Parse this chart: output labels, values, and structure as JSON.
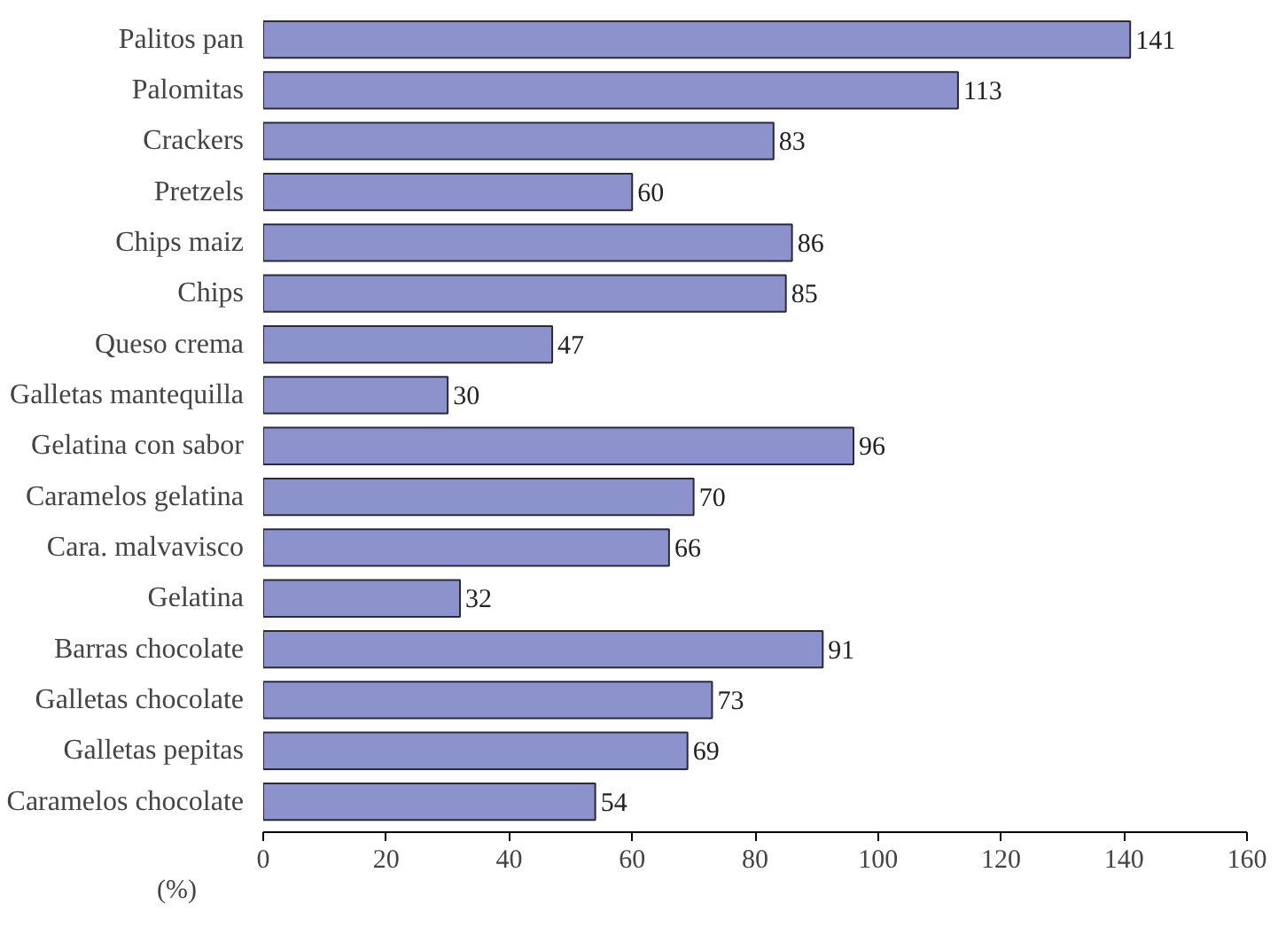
{
  "chart_data": {
    "type": "bar",
    "orientation": "horizontal",
    "xlabel": "(%)",
    "categories": [
      "Palitos pan",
      "Palomitas",
      "Crackers",
      "Pretzels",
      "Chips maiz",
      "Chips",
      "Queso crema",
      "Galletas mantequilla",
      "Gelatina con sabor",
      "Caramelos gelatina",
      "Cara. malvavisco",
      "Gelatina",
      "Barras chocolate",
      "Galletas chocolate",
      "Galletas pepitas",
      "Caramelos chocolate"
    ],
    "values": [
      141,
      113,
      83,
      60,
      86,
      85,
      47,
      30,
      96,
      70,
      66,
      32,
      91,
      73,
      69,
      54
    ],
    "color": "#8c92cc",
    "xlim": [
      0,
      160
    ],
    "xticks": [
      0,
      20,
      40,
      60,
      80,
      100,
      120,
      140,
      160
    ],
    "data_labels": true,
    "grid": false
  }
}
